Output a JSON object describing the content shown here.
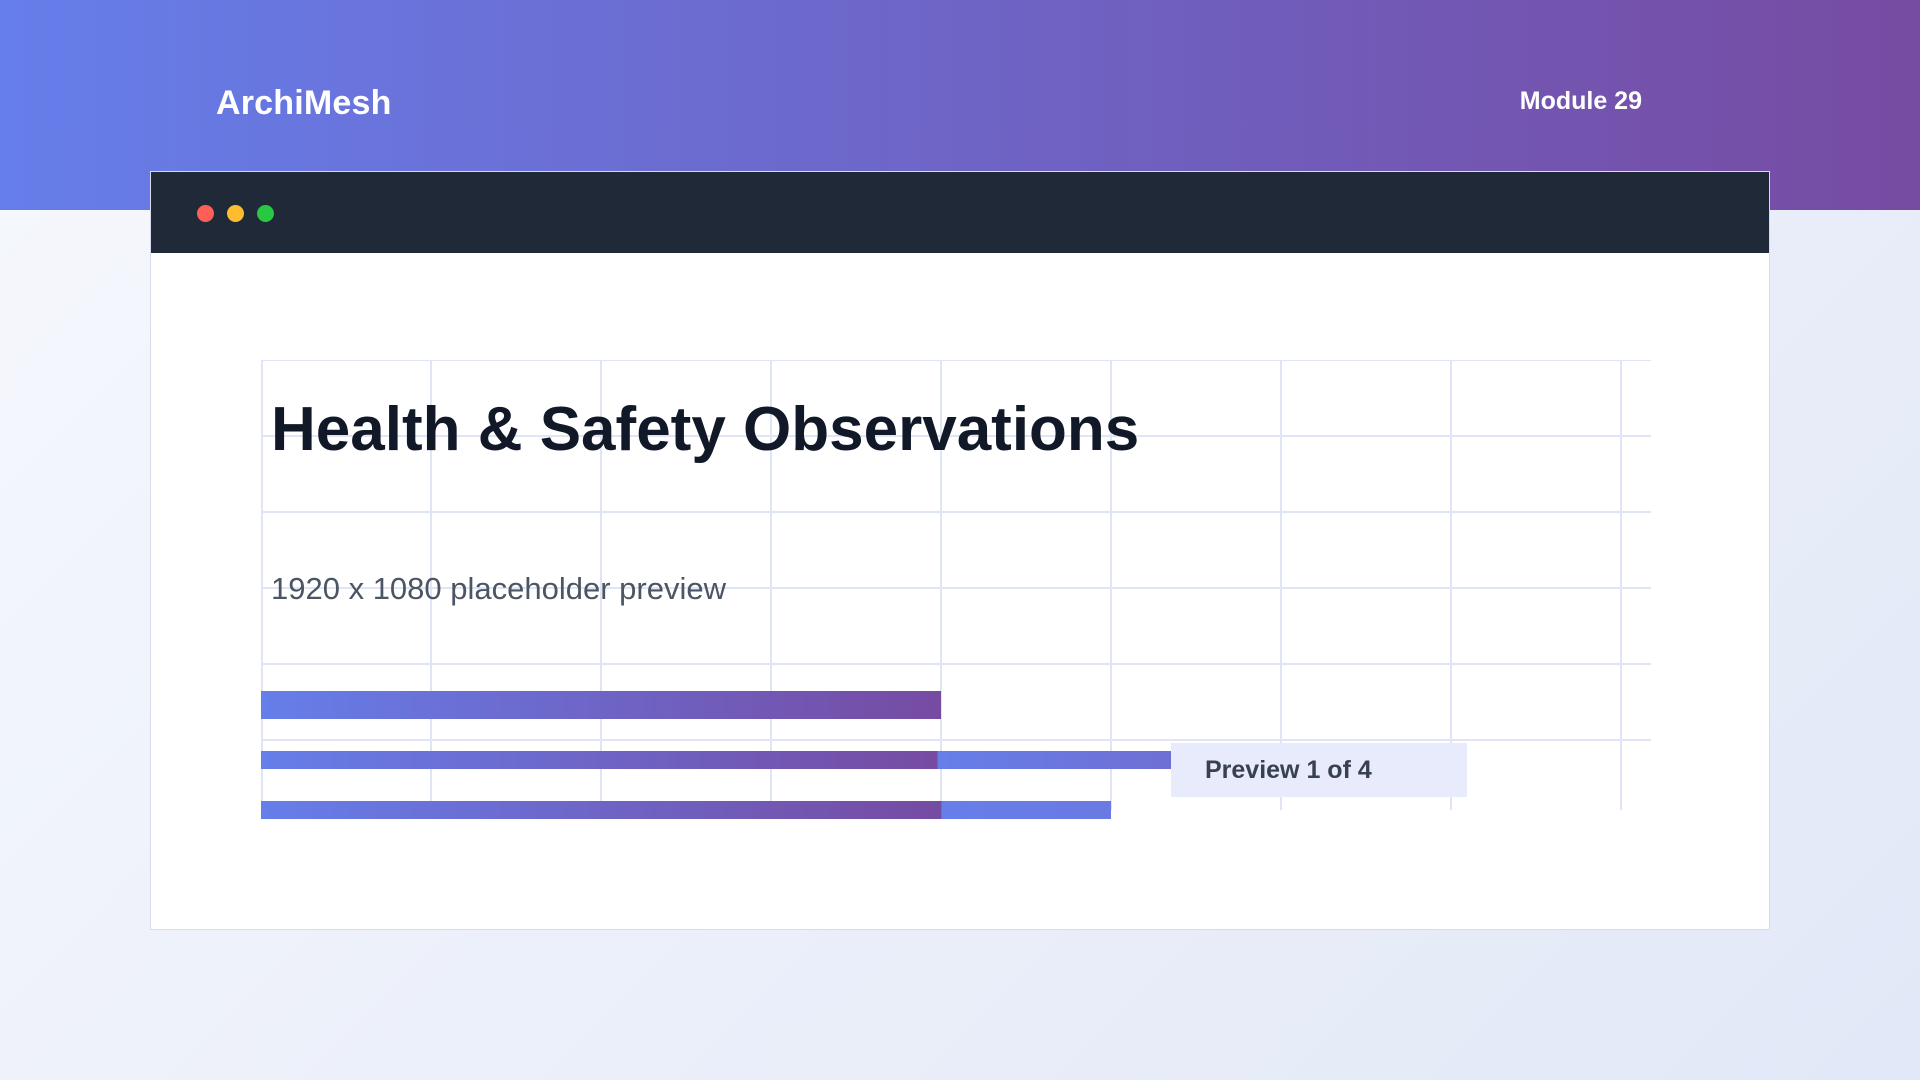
{
  "header": {
    "brand": "ArchiMesh",
    "module": "Module 29"
  },
  "window": {
    "title": "Health & Safety Observations",
    "subtitle": "1920 x 1080 placeholder preview",
    "badge": "Preview 1 of 4"
  },
  "colors": {
    "gradient_start": "#667eea",
    "gradient_end": "#764ba2",
    "titlebar": "#1f2937",
    "dot_red": "#ff5f57",
    "dot_yellow": "#febc2e",
    "dot_green": "#28c840",
    "grid_line": "#dfe4f7"
  }
}
